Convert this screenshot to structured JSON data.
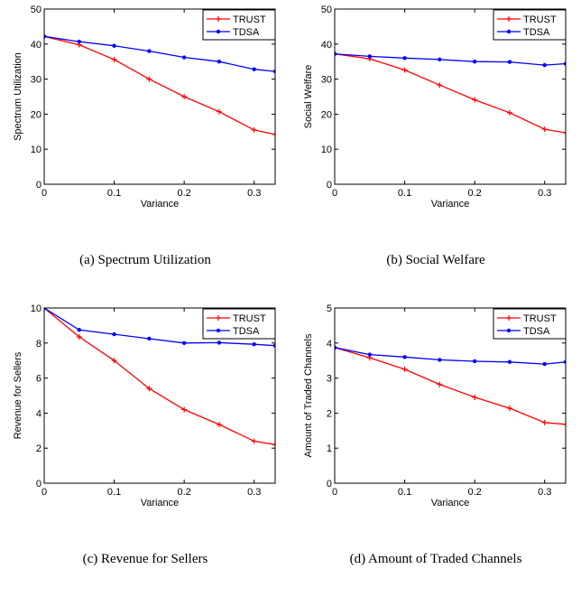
{
  "chart_data": [
    {
      "type": "line",
      "caption": "(a) Spectrum Utilization",
      "xlabel": "Variance",
      "ylabel": "Spectrum Utilization",
      "xlim": [
        0,
        0.33
      ],
      "ylim": [
        0,
        50
      ],
      "x_ticks": [
        "0",
        "0.1",
        "0.2",
        "0.3"
      ],
      "y_ticks": [
        "0",
        "10",
        "20",
        "30",
        "40",
        "50"
      ],
      "legend": "top-right",
      "grid": false,
      "x": [
        0,
        0.05,
        0.1,
        0.15,
        0.2,
        0.25,
        0.3,
        0.33
      ],
      "series": [
        {
          "name": "TRUST",
          "color": "#ff0000",
          "marker": "plus",
          "values": [
            42.2,
            39.8,
            35.6,
            30.0,
            25.0,
            20.7,
            15.5,
            14.2
          ]
        },
        {
          "name": "TDSA",
          "color": "#0000ff",
          "marker": "dot",
          "values": [
            42.2,
            40.7,
            39.5,
            38.0,
            36.2,
            35.0,
            32.8,
            32.2
          ]
        }
      ]
    },
    {
      "type": "line",
      "caption": "(b) Social Welfare",
      "xlabel": "Variance",
      "ylabel": "Social Welfare",
      "xlim": [
        0,
        0.33
      ],
      "ylim": [
        0,
        50
      ],
      "x_ticks": [
        "0",
        "0.1",
        "0.2",
        "0.3"
      ],
      "y_ticks": [
        "0",
        "10",
        "20",
        "30",
        "40",
        "50"
      ],
      "legend": "top-right",
      "grid": false,
      "x": [
        0,
        0.05,
        0.1,
        0.15,
        0.2,
        0.25,
        0.3,
        0.33
      ],
      "series": [
        {
          "name": "TRUST",
          "color": "#ff0000",
          "marker": "plus",
          "values": [
            37.2,
            35.8,
            32.6,
            28.3,
            24.1,
            20.4,
            15.7,
            14.7
          ]
        },
        {
          "name": "TDSA",
          "color": "#0000ff",
          "marker": "dot",
          "values": [
            37.2,
            36.5,
            36.0,
            35.6,
            35.0,
            34.9,
            34.0,
            34.4
          ]
        }
      ]
    },
    {
      "type": "line",
      "caption": "(c) Revenue for Sellers",
      "xlabel": "Variance",
      "ylabel": "Revenue for Sellers",
      "xlim": [
        0,
        0.33
      ],
      "ylim": [
        0,
        10
      ],
      "x_ticks": [
        "0",
        "0.1",
        "0.2",
        "0.3"
      ],
      "y_ticks": [
        "0",
        "2",
        "4",
        "6",
        "8",
        "10"
      ],
      "legend": "top-right",
      "grid": false,
      "x": [
        0,
        0.05,
        0.1,
        0.15,
        0.2,
        0.25,
        0.3,
        0.33
      ],
      "series": [
        {
          "name": "TRUST",
          "color": "#ff0000",
          "marker": "plus",
          "values": [
            10.0,
            8.35,
            7.0,
            5.4,
            4.2,
            3.35,
            2.4,
            2.2
          ]
        },
        {
          "name": "TDSA",
          "color": "#0000ff",
          "marker": "dot",
          "values": [
            10.0,
            8.75,
            8.5,
            8.25,
            8.0,
            8.02,
            7.93,
            7.85
          ]
        }
      ]
    },
    {
      "type": "line",
      "caption": "(d) Amount of Traded Channels",
      "xlabel": "Variance",
      "ylabel": "Amount of Traded Channels",
      "xlim": [
        0,
        0.33
      ],
      "ylim": [
        0,
        5
      ],
      "x_ticks": [
        "0",
        "0.1",
        "0.2",
        "0.3"
      ],
      "y_ticks": [
        "0",
        "1",
        "2",
        "3",
        "4",
        "5"
      ],
      "legend": "top-right",
      "grid": false,
      "x": [
        0,
        0.05,
        0.1,
        0.15,
        0.2,
        0.25,
        0.3,
        0.33
      ],
      "series": [
        {
          "name": "TRUST",
          "color": "#ff0000",
          "marker": "plus",
          "values": [
            3.87,
            3.58,
            3.25,
            2.82,
            2.45,
            2.14,
            1.73,
            1.68
          ]
        },
        {
          "name": "TDSA",
          "color": "#0000ff",
          "marker": "dot",
          "values": [
            3.87,
            3.67,
            3.6,
            3.52,
            3.48,
            3.46,
            3.4,
            3.46
          ]
        }
      ]
    }
  ]
}
